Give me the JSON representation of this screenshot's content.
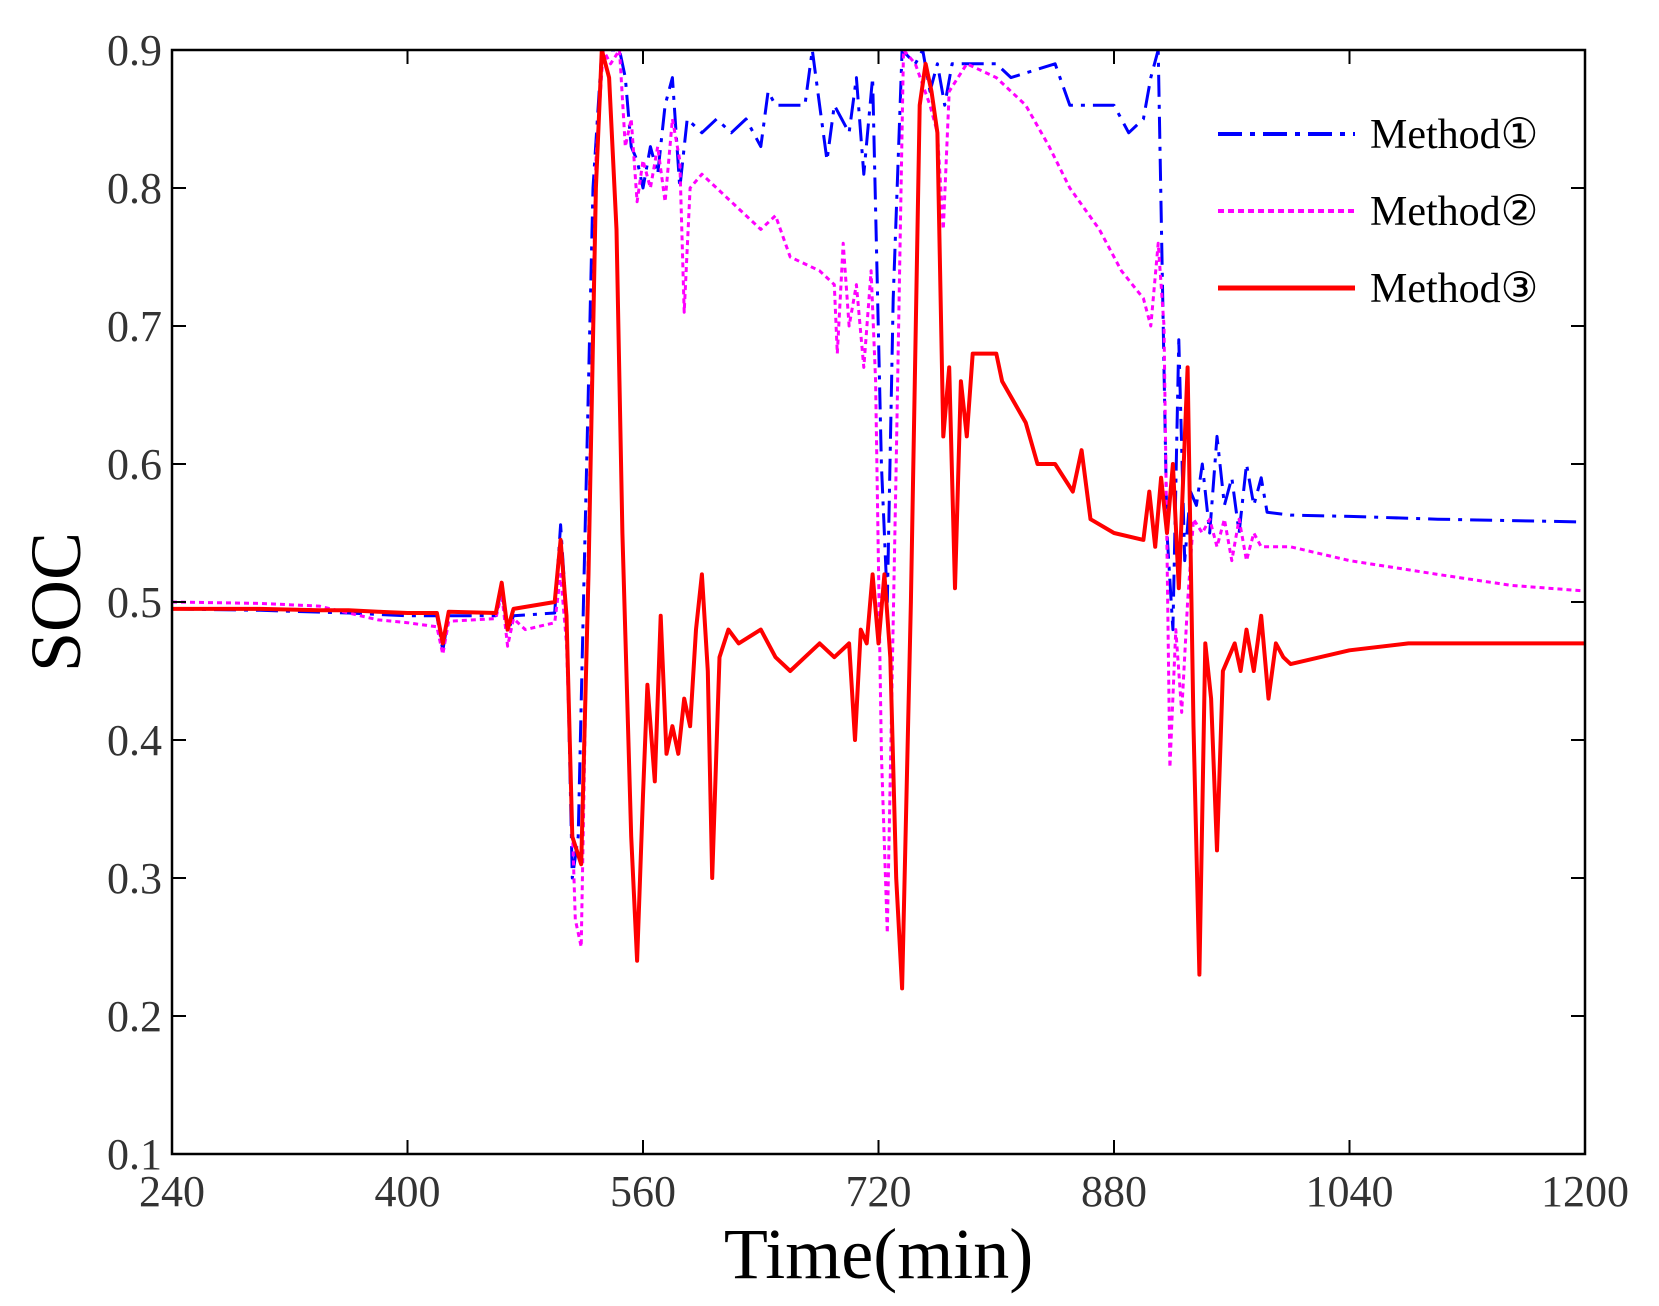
{
  "chart_data": {
    "type": "line",
    "title": "",
    "xlabel": "Time(min)",
    "ylabel": "SOC",
    "xlim": [
      240,
      1200
    ],
    "ylim": [
      0.1,
      0.9
    ],
    "xticks": [
      240,
      400,
      560,
      720,
      880,
      1040,
      1200
    ],
    "xtick_labels": [
      "240",
      "400",
      "560",
      "720",
      "880",
      "1040",
      "1200"
    ],
    "yticks": [
      0.1,
      0.2,
      0.3,
      0.4,
      0.5,
      0.6,
      0.7,
      0.8,
      0.9
    ],
    "ytick_labels": [
      "0.1",
      "0.2",
      "0.3",
      "0.4",
      "0.5",
      "0.6",
      "0.7",
      "0.8",
      "0.9"
    ],
    "grid": false,
    "legend_position": "top-right",
    "series": [
      {
        "name": "Method①",
        "color": "#0000ff",
        "style": "dashdot",
        "points": [
          [
            240,
            0.495
          ],
          [
            300,
            0.494
          ],
          [
            360,
            0.492
          ],
          [
            400,
            0.49
          ],
          [
            420,
            0.49
          ],
          [
            424,
            0.465
          ],
          [
            428,
            0.49
          ],
          [
            460,
            0.49
          ],
          [
            464,
            0.51
          ],
          [
            468,
            0.478
          ],
          [
            472,
            0.49
          ],
          [
            500,
            0.492
          ],
          [
            504,
            0.556
          ],
          [
            508,
            0.49
          ],
          [
            512,
            0.3
          ],
          [
            516,
            0.33
          ],
          [
            520,
            0.52
          ],
          [
            526,
            0.8
          ],
          [
            532,
            0.9
          ],
          [
            538,
            0.9
          ],
          [
            544,
            0.9
          ],
          [
            548,
            0.88
          ],
          [
            552,
            0.83
          ],
          [
            556,
            0.82
          ],
          [
            560,
            0.8
          ],
          [
            565,
            0.83
          ],
          [
            570,
            0.81
          ],
          [
            575,
            0.86
          ],
          [
            580,
            0.88
          ],
          [
            585,
            0.8
          ],
          [
            590,
            0.85
          ],
          [
            600,
            0.84
          ],
          [
            610,
            0.85
          ],
          [
            620,
            0.84
          ],
          [
            630,
            0.85
          ],
          [
            640,
            0.83
          ],
          [
            645,
            0.87
          ],
          [
            650,
            0.86
          ],
          [
            660,
            0.86
          ],
          [
            670,
            0.86
          ],
          [
            675,
            0.9
          ],
          [
            680,
            0.86
          ],
          [
            685,
            0.82
          ],
          [
            690,
            0.86
          ],
          [
            695,
            0.85
          ],
          [
            700,
            0.84
          ],
          [
            705,
            0.88
          ],
          [
            710,
            0.81
          ],
          [
            716,
            0.88
          ],
          [
            722,
            0.6
          ],
          [
            726,
            0.5
          ],
          [
            730,
            0.72
          ],
          [
            736,
            0.9
          ],
          [
            745,
            0.89
          ],
          [
            750,
            0.9
          ],
          [
            755,
            0.87
          ],
          [
            760,
            0.89
          ],
          [
            765,
            0.86
          ],
          [
            770,
            0.89
          ],
          [
            800,
            0.89
          ],
          [
            810,
            0.88
          ],
          [
            840,
            0.89
          ],
          [
            850,
            0.86
          ],
          [
            880,
            0.86
          ],
          [
            890,
            0.84
          ],
          [
            900,
            0.85
          ],
          [
            905,
            0.88
          ],
          [
            910,
            0.9
          ],
          [
            916,
            0.55
          ],
          [
            920,
            0.48
          ],
          [
            924,
            0.69
          ],
          [
            928,
            0.53
          ],
          [
            932,
            0.58
          ],
          [
            936,
            0.57
          ],
          [
            940,
            0.6
          ],
          [
            945,
            0.55
          ],
          [
            950,
            0.62
          ],
          [
            955,
            0.57
          ],
          [
            960,
            0.59
          ],
          [
            965,
            0.55
          ],
          [
            970,
            0.6
          ],
          [
            975,
            0.57
          ],
          [
            980,
            0.59
          ],
          [
            984,
            0.565
          ],
          [
            1000,
            0.563
          ],
          [
            1040,
            0.562
          ],
          [
            1100,
            0.56
          ],
          [
            1150,
            0.559
          ],
          [
            1200,
            0.558
          ]
        ]
      },
      {
        "name": "Method②",
        "color": "#ff00ff",
        "style": "dotted",
        "points": [
          [
            240,
            0.5
          ],
          [
            300,
            0.499
          ],
          [
            340,
            0.497
          ],
          [
            360,
            0.492
          ],
          [
            380,
            0.487
          ],
          [
            400,
            0.485
          ],
          [
            420,
            0.482
          ],
          [
            424,
            0.462
          ],
          [
            428,
            0.486
          ],
          [
            460,
            0.488
          ],
          [
            464,
            0.506
          ],
          [
            468,
            0.468
          ],
          [
            472,
            0.488
          ],
          [
            480,
            0.48
          ],
          [
            500,
            0.485
          ],
          [
            504,
            0.52
          ],
          [
            508,
            0.47
          ],
          [
            514,
            0.27
          ],
          [
            518,
            0.25
          ],
          [
            522,
            0.49
          ],
          [
            528,
            0.82
          ],
          [
            533,
            0.9
          ],
          [
            538,
            0.89
          ],
          [
            544,
            0.9
          ],
          [
            548,
            0.83
          ],
          [
            552,
            0.85
          ],
          [
            556,
            0.79
          ],
          [
            560,
            0.82
          ],
          [
            565,
            0.8
          ],
          [
            570,
            0.83
          ],
          [
            575,
            0.79
          ],
          [
            580,
            0.85
          ],
          [
            585,
            0.82
          ],
          [
            588,
            0.71
          ],
          [
            592,
            0.8
          ],
          [
            600,
            0.81
          ],
          [
            620,
            0.79
          ],
          [
            640,
            0.77
          ],
          [
            650,
            0.78
          ],
          [
            660,
            0.75
          ],
          [
            680,
            0.74
          ],
          [
            690,
            0.73
          ],
          [
            692,
            0.68
          ],
          [
            696,
            0.76
          ],
          [
            700,
            0.7
          ],
          [
            705,
            0.73
          ],
          [
            710,
            0.67
          ],
          [
            715,
            0.74
          ],
          [
            718,
            0.66
          ],
          [
            722,
            0.39
          ],
          [
            726,
            0.26
          ],
          [
            732,
            0.6
          ],
          [
            737,
            0.9
          ],
          [
            745,
            0.89
          ],
          [
            755,
            0.86
          ],
          [
            760,
            0.84
          ],
          [
            764,
            0.77
          ],
          [
            768,
            0.87
          ],
          [
            780,
            0.89
          ],
          [
            800,
            0.88
          ],
          [
            820,
            0.86
          ],
          [
            836,
            0.83
          ],
          [
            850,
            0.8
          ],
          [
            870,
            0.77
          ],
          [
            885,
            0.74
          ],
          [
            900,
            0.72
          ],
          [
            905,
            0.7
          ],
          [
            910,
            0.76
          ],
          [
            914,
            0.7
          ],
          [
            918,
            0.38
          ],
          [
            922,
            0.48
          ],
          [
            926,
            0.42
          ],
          [
            930,
            0.5
          ],
          [
            934,
            0.56
          ],
          [
            940,
            0.55
          ],
          [
            945,
            0.56
          ],
          [
            950,
            0.54
          ],
          [
            955,
            0.56
          ],
          [
            960,
            0.53
          ],
          [
            965,
            0.56
          ],
          [
            970,
            0.53
          ],
          [
            975,
            0.55
          ],
          [
            980,
            0.54
          ],
          [
            1000,
            0.54
          ],
          [
            1040,
            0.53
          ],
          [
            1100,
            0.52
          ],
          [
            1150,
            0.512
          ],
          [
            1200,
            0.508
          ]
        ]
      },
      {
        "name": "Method③",
        "color": "#ff0000",
        "style": "solid",
        "points": [
          [
            240,
            0.495
          ],
          [
            300,
            0.495
          ],
          [
            340,
            0.494
          ],
          [
            360,
            0.494
          ],
          [
            380,
            0.493
          ],
          [
            400,
            0.492
          ],
          [
            420,
            0.492
          ],
          [
            424,
            0.47
          ],
          [
            428,
            0.493
          ],
          [
            460,
            0.492
          ],
          [
            464,
            0.514
          ],
          [
            468,
            0.48
          ],
          [
            472,
            0.495
          ],
          [
            500,
            0.5
          ],
          [
            504,
            0.545
          ],
          [
            508,
            0.49
          ],
          [
            512,
            0.33
          ],
          [
            518,
            0.31
          ],
          [
            523,
            0.52
          ],
          [
            528,
            0.8
          ],
          [
            532,
            0.9
          ],
          [
            537,
            0.88
          ],
          [
            542,
            0.77
          ],
          [
            546,
            0.55
          ],
          [
            552,
            0.33
          ],
          [
            556,
            0.24
          ],
          [
            560,
            0.36
          ],
          [
            563,
            0.44
          ],
          [
            568,
            0.37
          ],
          [
            572,
            0.49
          ],
          [
            576,
            0.39
          ],
          [
            580,
            0.41
          ],
          [
            584,
            0.39
          ],
          [
            588,
            0.43
          ],
          [
            592,
            0.41
          ],
          [
            596,
            0.48
          ],
          [
            600,
            0.52
          ],
          [
            604,
            0.45
          ],
          [
            607,
            0.3
          ],
          [
            612,
            0.46
          ],
          [
            618,
            0.48
          ],
          [
            625,
            0.47
          ],
          [
            640,
            0.48
          ],
          [
            650,
            0.46
          ],
          [
            660,
            0.45
          ],
          [
            670,
            0.46
          ],
          [
            680,
            0.47
          ],
          [
            690,
            0.46
          ],
          [
            700,
            0.47
          ],
          [
            704,
            0.4
          ],
          [
            708,
            0.48
          ],
          [
            712,
            0.47
          ],
          [
            716,
            0.52
          ],
          [
            720,
            0.47
          ],
          [
            724,
            0.52
          ],
          [
            728,
            0.46
          ],
          [
            732,
            0.3
          ],
          [
            736,
            0.22
          ],
          [
            742,
            0.5
          ],
          [
            748,
            0.86
          ],
          [
            752,
            0.89
          ],
          [
            756,
            0.87
          ],
          [
            760,
            0.84
          ],
          [
            764,
            0.62
          ],
          [
            768,
            0.67
          ],
          [
            772,
            0.51
          ],
          [
            776,
            0.66
          ],
          [
            780,
            0.62
          ],
          [
            784,
            0.68
          ],
          [
            800,
            0.68
          ],
          [
            804,
            0.66
          ],
          [
            820,
            0.63
          ],
          [
            828,
            0.6
          ],
          [
            840,
            0.6
          ],
          [
            852,
            0.58
          ],
          [
            858,
            0.61
          ],
          [
            864,
            0.56
          ],
          [
            880,
            0.55
          ],
          [
            900,
            0.545
          ],
          [
            904,
            0.58
          ],
          [
            908,
            0.54
          ],
          [
            912,
            0.59
          ],
          [
            916,
            0.55
          ],
          [
            920,
            0.6
          ],
          [
            924,
            0.51
          ],
          [
            930,
            0.67
          ],
          [
            934,
            0.41
          ],
          [
            938,
            0.23
          ],
          [
            942,
            0.47
          ],
          [
            946,
            0.43
          ],
          [
            950,
            0.32
          ],
          [
            954,
            0.45
          ],
          [
            958,
            0.46
          ],
          [
            962,
            0.47
          ],
          [
            966,
            0.45
          ],
          [
            970,
            0.48
          ],
          [
            975,
            0.45
          ],
          [
            980,
            0.49
          ],
          [
            985,
            0.43
          ],
          [
            990,
            0.47
          ],
          [
            995,
            0.46
          ],
          [
            1000,
            0.455
          ],
          [
            1040,
            0.465
          ],
          [
            1080,
            0.47
          ],
          [
            1100,
            0.47
          ],
          [
            1150,
            0.47
          ],
          [
            1200,
            0.47
          ]
        ]
      }
    ]
  }
}
